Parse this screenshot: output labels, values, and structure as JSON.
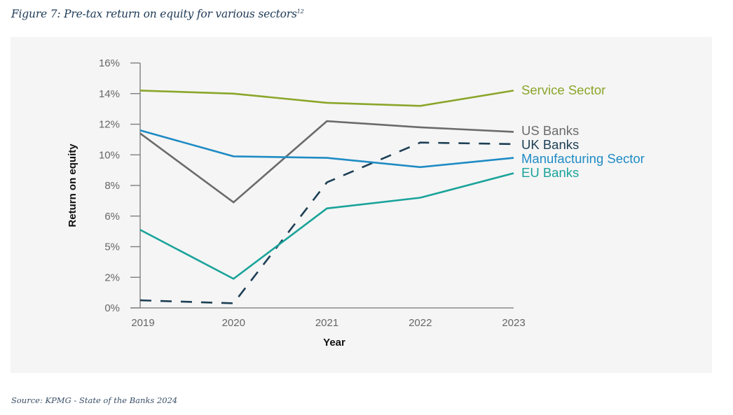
{
  "figure": {
    "title": "Figure 7: Pre-tax return on equity for various sectors",
    "footnote_marker": "12",
    "source": "Source: KPMG - State of the Banks 2024"
  },
  "chart_data": {
    "type": "line",
    "title": "Pre-tax return on equity for various sectors",
    "xlabel": "Year",
    "ylabel": "Return on equity",
    "x": [
      "2019",
      "2020",
      "2021",
      "2022",
      "2023"
    ],
    "y_tick_labels": [
      "0%",
      "2%",
      "5%",
      "6%",
      "8%",
      "10%",
      "12%",
      "14%",
      "16%"
    ],
    "ylim": [
      0,
      16
    ],
    "grid": false,
    "legend": "right (inline labels at line ends)",
    "series": [
      {
        "name": "Service Sector",
        "color": "#8aa62a",
        "dashed": false,
        "values": [
          14.2,
          14.0,
          13.4,
          13.2,
          14.2
        ]
      },
      {
        "name": "US Banks",
        "color": "#6b6b6b",
        "dashed": false,
        "values": [
          11.4,
          6.9,
          12.2,
          11.8,
          11.5
        ]
      },
      {
        "name": "UK Banks",
        "color": "#1d3f55",
        "dashed": true,
        "values": [
          0.5,
          0.3,
          8.2,
          10.8,
          10.7
        ]
      },
      {
        "name": "Manufacturing Sector",
        "color": "#1f8bc4",
        "dashed": false,
        "values": [
          11.6,
          9.9,
          9.8,
          9.2,
          9.8
        ]
      },
      {
        "name": "EU Banks",
        "color": "#1aa39a",
        "dashed": false,
        "values": [
          5.1,
          1.9,
          6.5,
          7.2,
          8.8
        ]
      }
    ]
  }
}
